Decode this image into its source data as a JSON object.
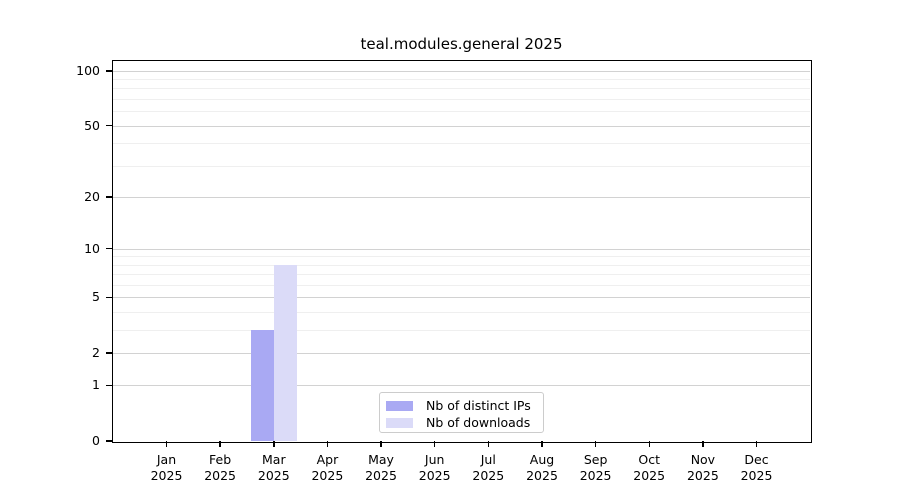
{
  "figure": {
    "title": "teal.modules.general 2025"
  },
  "chart_data": {
    "type": "bar",
    "title": "teal.modules.general 2025",
    "categories": [
      "Jan 2025",
      "Feb 2025",
      "Mar 2025",
      "Apr 2025",
      "May 2025",
      "Jun 2025",
      "Jul 2025",
      "Aug 2025",
      "Sep 2025",
      "Oct 2025",
      "Nov 2025",
      "Dec 2025"
    ],
    "series": [
      {
        "name": "Nb of distinct IPs",
        "color": "#a9a9f3",
        "values": [
          0,
          0,
          3,
          0,
          0,
          0,
          0,
          0,
          0,
          0,
          0,
          0
        ]
      },
      {
        "name": "Nb of downloads",
        "color": "#dbdbf8",
        "values": [
          0,
          0,
          8,
          0,
          0,
          0,
          0,
          0,
          0,
          0,
          0,
          0
        ]
      }
    ],
    "xlabel": "",
    "ylabel": "",
    "yscale": "log1p",
    "ylim": [
      0,
      113
    ],
    "yticks": [
      0,
      1,
      2,
      5,
      10,
      20,
      50,
      100
    ],
    "yticks_minor": [
      3,
      4,
      6,
      7,
      8,
      9,
      30,
      40,
      60,
      70,
      80,
      90
    ],
    "grid": "horizontal-major-and-minor",
    "legend_position": "lower-center-inside",
    "colors": {
      "spine": "#000000",
      "grid_major": "#d2d2d2",
      "grid_minor": "#efefef",
      "legend_border": "#cccccc",
      "text": "#000000"
    }
  }
}
